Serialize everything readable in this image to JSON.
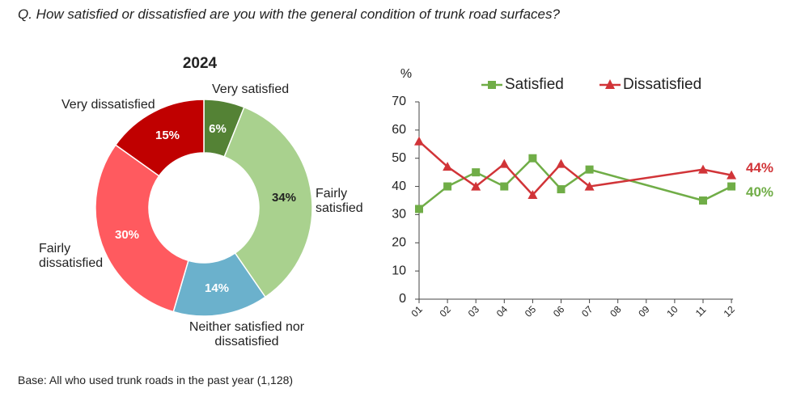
{
  "question": "Q. How satisfied or dissatisfied are you with the general condition of trunk road surfaces?",
  "base": "Base: All who used trunk roads in the past year (1,128)",
  "chart_data": [
    {
      "type": "pie",
      "title": "2024",
      "donut": true,
      "slices": [
        {
          "label": "Very satisfied",
          "value": 6,
          "value_label": "6%",
          "color": "#548235"
        },
        {
          "label": "Fairly satisfied",
          "value": 34,
          "value_label": "34%",
          "color": "#a9d18e"
        },
        {
          "label": "Neither satisfied nor dissatisfied",
          "value": 14,
          "value_label": "14%",
          "color": "#6bb1cc"
        },
        {
          "label": "Fairly dissatisfied",
          "value": 30,
          "value_label": "30%",
          "color": "#ff5a5f"
        },
        {
          "label": "Very dissatisfied",
          "value": 15,
          "value_label": "15%",
          "color": "#c00000"
        }
      ]
    },
    {
      "type": "line",
      "ylabel": "%",
      "ylim": [
        0,
        70
      ],
      "yticks": [
        0,
        10,
        20,
        30,
        40,
        50,
        60,
        70
      ],
      "categories": [
        "01",
        "02",
        "03",
        "04",
        "05",
        "06",
        "07",
        "08",
        "09",
        "10",
        "11",
        "12"
      ],
      "legend_position": "top",
      "series": [
        {
          "name": "Satisfied",
          "color": "#70ad47",
          "marker": "square",
          "values": [
            32,
            40,
            45,
            40,
            50,
            39,
            46,
            null,
            null,
            null,
            35,
            40
          ],
          "end_label": "40%"
        },
        {
          "name": "Dissatisfied",
          "color": "#d13438",
          "marker": "triangle",
          "values": [
            56,
            47,
            40,
            48,
            37,
            48,
            40,
            null,
            null,
            null,
            46,
            44
          ],
          "end_label": "44%"
        }
      ]
    }
  ]
}
